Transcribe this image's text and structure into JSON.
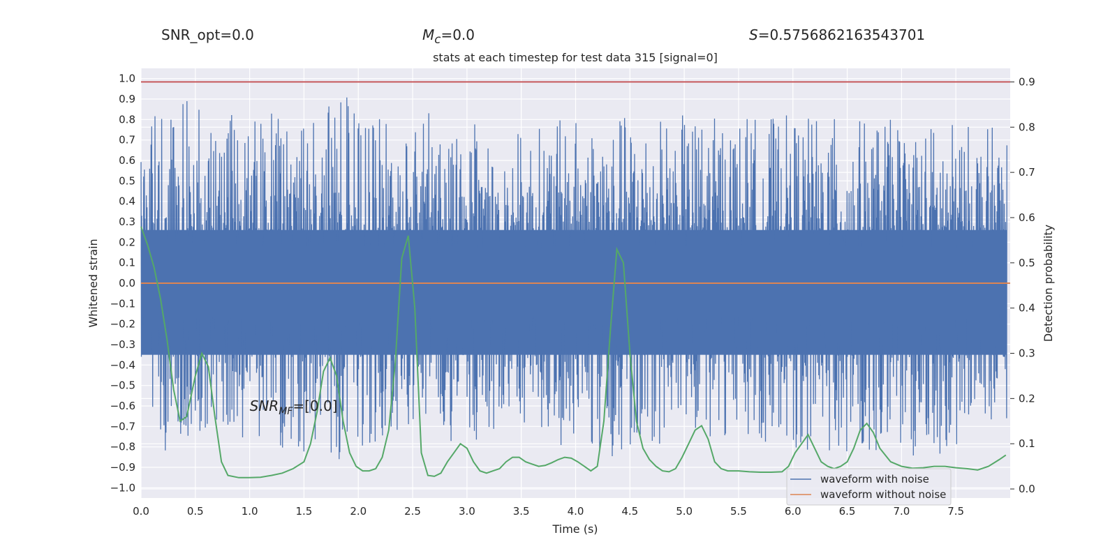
{
  "stats": {
    "snr_opt_label": "SNR_opt",
    "snr_opt_value": "=0.0",
    "mc_symbol": "M",
    "mc_sub": "c",
    "mc_value": "=0.0",
    "s_symbol": "S",
    "s_value": "=0.5756862163543701"
  },
  "chart_data": {
    "type": "line",
    "title": "stats at each timestep for test data 315 [signal=0]",
    "xlabel": "Time (s)",
    "ylabel": "Whitened strain",
    "ylabel_right": "Detection probability",
    "xlim": [
      0.0,
      8.0
    ],
    "ylim": [
      -1.05,
      1.05
    ],
    "ylim_right": [
      -0.02,
      0.93
    ],
    "x_ticks": [
      "0.0",
      "0.5",
      "1.0",
      "1.5",
      "2.0",
      "2.5",
      "3.0",
      "3.5",
      "4.0",
      "4.5",
      "5.0",
      "5.5",
      "6.0",
      "6.5",
      "7.0",
      "7.5"
    ],
    "y_ticks": [
      "1.0",
      "0.9",
      "0.8",
      "0.7",
      "0.6",
      "0.5",
      "0.4",
      "0.3",
      "0.2",
      "0.1",
      "0.0",
      "-0.1",
      "-0.2",
      "-0.3",
      "-0.4",
      "-0.5",
      "-0.6",
      "-0.7",
      "-0.8",
      "-0.9",
      "-1.0"
    ],
    "y_ticks_right": [
      "0.9",
      "0.8",
      "0.7",
      "0.6",
      "0.5",
      "0.4",
      "0.3",
      "0.2",
      "0.1",
      "0.0"
    ],
    "grid": true,
    "legend_position": "lower-right",
    "annotation": {
      "text": "SNR",
      "sub": "MF",
      "value": "=[0.0]",
      "x": 1.0,
      "y": -0.6
    },
    "threshold": {
      "value": 0.9,
      "axis": "right",
      "color": "#c44e52"
    },
    "series": [
      {
        "name": "waveform with noise",
        "axis": "left",
        "color": "#4c72b0",
        "kind": "noise",
        "envelope_top": [
          [
            0.0,
            0.75
          ],
          [
            0.35,
            0.93
          ],
          [
            0.75,
            0.82
          ],
          [
            1.26,
            0.83
          ],
          [
            1.6,
            0.84
          ],
          [
            1.9,
            0.93
          ],
          [
            2.1,
            0.79
          ],
          [
            2.6,
            0.85
          ],
          [
            3.3,
            0.74
          ],
          [
            4.2,
            0.83
          ],
          [
            4.8,
            0.82
          ],
          [
            5.6,
            0.82
          ],
          [
            6.2,
            0.82
          ],
          [
            6.8,
            0.8
          ],
          [
            7.5,
            0.79
          ],
          [
            7.95,
            0.75
          ]
        ],
        "envelope_bottom": [
          [
            0.0,
            -0.7
          ],
          [
            0.22,
            -0.85
          ],
          [
            0.6,
            -0.72
          ],
          [
            0.9,
            -0.78
          ],
          [
            1.5,
            -0.86
          ],
          [
            2.1,
            -0.86
          ],
          [
            2.7,
            -0.72
          ],
          [
            3.0,
            -0.82
          ],
          [
            3.6,
            -0.72
          ],
          [
            4.2,
            -0.88
          ],
          [
            4.8,
            -0.78
          ],
          [
            5.5,
            -0.75
          ],
          [
            6.3,
            -0.83
          ],
          [
            6.8,
            -0.84
          ],
          [
            7.2,
            -0.95
          ],
          [
            7.9,
            -0.66
          ]
        ]
      },
      {
        "name": "waveform without noise",
        "axis": "left",
        "color": "#dd8452",
        "x": [
          0.0,
          8.0
        ],
        "y": [
          0.0,
          0.0
        ]
      },
      {
        "name": "",
        "axis": "right",
        "color": "#55a868",
        "x": [
          0.0,
          0.06,
          0.12,
          0.18,
          0.24,
          0.3,
          0.36,
          0.42,
          0.5,
          0.56,
          0.62,
          0.68,
          0.74,
          0.8,
          0.9,
          1.0,
          1.1,
          1.2,
          1.3,
          1.4,
          1.5,
          1.56,
          1.62,
          1.68,
          1.74,
          1.8,
          1.86,
          1.92,
          1.98,
          2.04,
          2.1,
          2.16,
          2.22,
          2.28,
          2.34,
          2.4,
          2.46,
          2.52,
          2.58,
          2.64,
          2.7,
          2.76,
          2.82,
          2.88,
          2.94,
          3.0,
          3.06,
          3.12,
          3.18,
          3.24,
          3.3,
          3.36,
          3.42,
          3.48,
          3.54,
          3.6,
          3.66,
          3.72,
          3.78,
          3.84,
          3.9,
          3.96,
          4.02,
          4.08,
          4.14,
          4.2,
          4.26,
          4.32,
          4.38,
          4.44,
          4.5,
          4.56,
          4.62,
          4.68,
          4.74,
          4.8,
          4.86,
          4.92,
          4.98,
          5.04,
          5.1,
          5.16,
          5.22,
          5.28,
          5.34,
          5.4,
          5.5,
          5.6,
          5.7,
          5.8,
          5.9,
          5.96,
          6.02,
          6.08,
          6.14,
          6.2,
          6.26,
          6.32,
          6.38,
          6.44,
          6.5,
          6.56,
          6.62,
          6.68,
          6.74,
          6.8,
          6.9,
          7.0,
          7.1,
          7.2,
          7.3,
          7.4,
          7.5,
          7.6,
          7.7,
          7.8,
          7.9,
          7.96
        ],
        "y": [
          0.58,
          0.54,
          0.49,
          0.42,
          0.33,
          0.22,
          0.15,
          0.16,
          0.25,
          0.3,
          0.27,
          0.16,
          0.06,
          0.03,
          0.025,
          0.025,
          0.026,
          0.03,
          0.035,
          0.045,
          0.06,
          0.1,
          0.17,
          0.26,
          0.29,
          0.25,
          0.15,
          0.08,
          0.05,
          0.04,
          0.04,
          0.045,
          0.07,
          0.13,
          0.28,
          0.51,
          0.56,
          0.4,
          0.08,
          0.03,
          0.028,
          0.035,
          0.06,
          0.08,
          0.1,
          0.09,
          0.06,
          0.04,
          0.035,
          0.04,
          0.045,
          0.06,
          0.07,
          0.07,
          0.06,
          0.055,
          0.05,
          0.052,
          0.058,
          0.065,
          0.07,
          0.068,
          0.06,
          0.05,
          0.04,
          0.05,
          0.15,
          0.35,
          0.53,
          0.5,
          0.3,
          0.15,
          0.09,
          0.065,
          0.05,
          0.04,
          0.038,
          0.045,
          0.07,
          0.1,
          0.13,
          0.14,
          0.11,
          0.06,
          0.045,
          0.04,
          0.04,
          0.038,
          0.037,
          0.037,
          0.038,
          0.05,
          0.08,
          0.1,
          0.12,
          0.09,
          0.06,
          0.05,
          0.045,
          0.05,
          0.06,
          0.09,
          0.13,
          0.145,
          0.125,
          0.09,
          0.06,
          0.05,
          0.046,
          0.047,
          0.05,
          0.05,
          0.047,
          0.045,
          0.042,
          0.05,
          0.065,
          0.075
        ]
      }
    ]
  }
}
